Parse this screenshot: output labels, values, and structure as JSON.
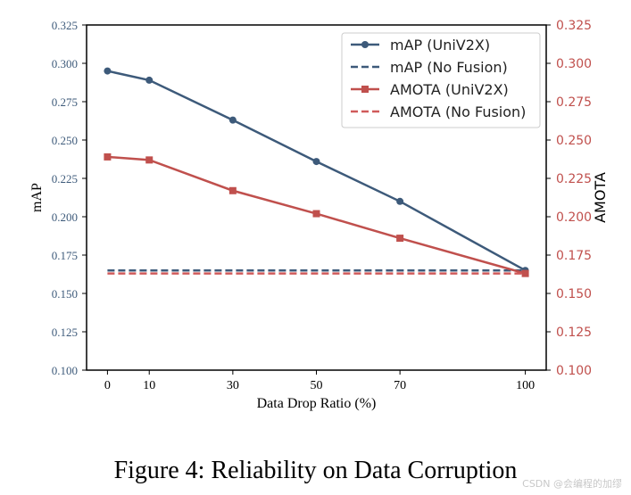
{
  "chart_data": {
    "type": "line",
    "xlabel": "Data Drop Ratio (%)",
    "ylabel_left": "mAP",
    "ylabel_right": "AMOTA",
    "x": [
      0,
      10,
      30,
      50,
      70,
      100
    ],
    "xlim": [
      -5,
      105
    ],
    "x_ticks": [
      "0",
      "10",
      "30",
      "50",
      "70",
      "100"
    ],
    "ylim": [
      0.1,
      0.325
    ],
    "y_ticks": [
      "0.100",
      "0.125",
      "0.150",
      "0.175",
      "0.200",
      "0.225",
      "0.250",
      "0.275",
      "0.300",
      "0.325"
    ],
    "series": [
      {
        "name": "mAP (UniV2X)",
        "axis": "left",
        "style": "solid",
        "marker": "circle",
        "color": "#3d5a7a",
        "values": [
          0.295,
          0.289,
          0.263,
          0.236,
          0.21,
          0.165
        ]
      },
      {
        "name": "mAP (No Fusion)",
        "axis": "left",
        "style": "dashed",
        "marker": "none",
        "color": "#3d5a7a",
        "values": [
          0.165,
          0.165,
          0.165,
          0.165,
          0.165,
          0.165
        ]
      },
      {
        "name": "AMOTA (UniV2X)",
        "axis": "right",
        "style": "solid",
        "marker": "square",
        "color": "#c0504d",
        "values": [
          0.239,
          0.237,
          0.217,
          0.202,
          0.186,
          0.163
        ]
      },
      {
        "name": "AMOTA (No Fusion)",
        "axis": "right",
        "style": "dashed",
        "marker": "none",
        "color": "#d05a5a",
        "values": [
          0.163,
          0.163,
          0.163,
          0.163,
          0.163,
          0.163
        ]
      }
    ],
    "legend_position": "top-right",
    "grid": false
  },
  "caption": "Figure 4: Reliability on Data Corruption",
  "watermark": "CSDN @会编程的加缪"
}
